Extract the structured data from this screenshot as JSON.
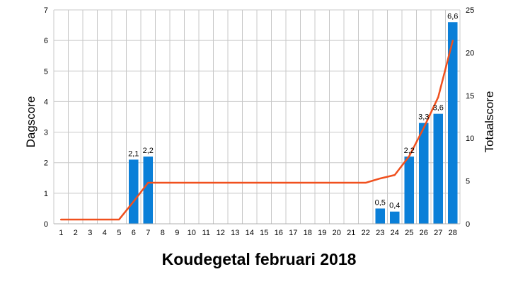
{
  "chart_data": {
    "type": "bar",
    "title": "Koudegetal februari 2018",
    "ylabel": "Dagscore",
    "y2label": "Totaalscore",
    "categories": [
      "1",
      "2",
      "3",
      "4",
      "5",
      "6",
      "7",
      "8",
      "9",
      "10",
      "11",
      "12",
      "13",
      "14",
      "15",
      "16",
      "17",
      "18",
      "19",
      "20",
      "21",
      "22",
      "23",
      "24",
      "25",
      "26",
      "27",
      "28"
    ],
    "ylim": [
      0,
      7
    ],
    "y2lim": [
      0,
      25
    ],
    "yticks": [
      "0",
      "1",
      "2",
      "3",
      "4",
      "5",
      "6",
      "7"
    ],
    "y2ticks": [
      "0",
      "5",
      "10",
      "15",
      "20",
      "25"
    ],
    "grid": true,
    "series": [
      {
        "type": "bar",
        "axis": "left",
        "color": "#0a7fd8",
        "values": [
          0,
          0,
          0,
          0,
          0,
          2.1,
          2.2,
          0,
          0,
          0,
          0,
          0,
          0,
          0,
          0,
          0,
          0,
          0,
          0,
          0,
          0,
          0,
          0.5,
          0.4,
          2.2,
          3.3,
          3.6,
          6.6
        ],
        "labels": [
          "",
          "",
          "",
          "",
          "",
          "2,1",
          "2,2",
          "",
          "",
          "",
          "",
          "",
          "",
          "",
          "",
          "",
          "",
          "",
          "",
          "",
          "",
          "",
          "0,5",
          "0,4",
          "2,2",
          "3,3",
          "3,6",
          "6,6"
        ]
      },
      {
        "type": "line",
        "axis": "right",
        "color": "#f0501e",
        "values": [
          0.5,
          0.5,
          0.5,
          0.5,
          0.5,
          2.6,
          4.8,
          4.8,
          4.8,
          4.8,
          4.8,
          4.8,
          4.8,
          4.8,
          4.8,
          4.8,
          4.8,
          4.8,
          4.8,
          4.8,
          4.8,
          4.8,
          5.3,
          5.7,
          7.9,
          11.2,
          14.8,
          21.4
        ]
      }
    ]
  }
}
